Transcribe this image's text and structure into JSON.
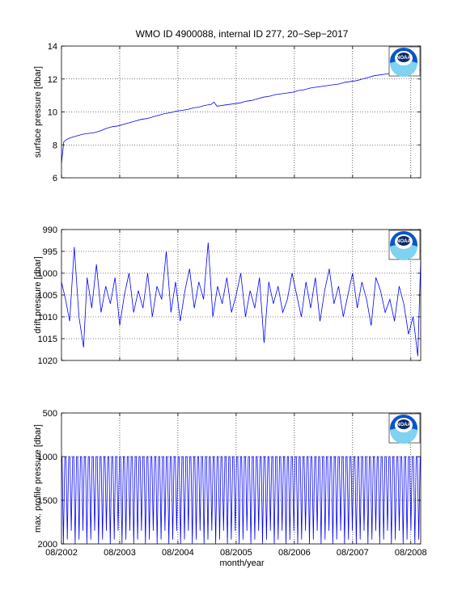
{
  "figure": {
    "title": "WMO ID 4900088, internal ID 277, 20−Sep−2017",
    "xlabel": "month/year",
    "logo_text": "NOAA"
  },
  "colors": {
    "line": "#0000ff",
    "grid": "#000000",
    "logo_blue": "#0a55c8",
    "logo_navy": "#0d2a6b"
  },
  "chart_data": [
    {
      "type": "line",
      "ylabel": "surface pressure [dbar]",
      "ylim": [
        6,
        14
      ],
      "yticks": [
        6,
        8,
        10,
        12,
        14
      ],
      "y_reversed": false,
      "grid": true,
      "series": [
        {
          "x": [
            2002.58,
            2002.62,
            2002.68,
            2002.75,
            2002.85,
            2002.95,
            2003.05,
            2003.15,
            2003.25,
            2003.35,
            2003.45,
            2003.55,
            2003.65,
            2003.75,
            2003.85,
            2003.95,
            2004.05,
            2004.15,
            2004.25,
            2004.35,
            2004.45,
            2004.55,
            2004.65,
            2004.75,
            2004.85,
            2004.95,
            2005.05,
            2005.15,
            2005.2,
            2005.25,
            2005.35,
            2005.45,
            2005.55,
            2005.65,
            2005.75,
            2005.85,
            2005.95,
            2006.05,
            2006.15,
            2006.25,
            2006.35,
            2006.45,
            2006.55,
            2006.65,
            2006.75,
            2006.85,
            2006.95,
            2007.05,
            2007.15,
            2007.25,
            2007.35,
            2007.45,
            2007.55,
            2007.65,
            2007.75,
            2007.85,
            2007.95,
            2008.05,
            2008.15,
            2008.25,
            2008.35,
            2008.45,
            2008.55,
            2008.65,
            2008.75
          ],
          "y": [
            6.9,
            8.2,
            8.35,
            8.45,
            8.55,
            8.65,
            8.7,
            8.75,
            8.85,
            9.0,
            9.1,
            9.15,
            9.25,
            9.35,
            9.45,
            9.55,
            9.6,
            9.7,
            9.8,
            9.9,
            9.95,
            10.05,
            10.1,
            10.15,
            10.25,
            10.3,
            10.4,
            10.45,
            10.6,
            10.35,
            10.4,
            10.45,
            10.5,
            10.55,
            10.65,
            10.7,
            10.8,
            10.9,
            10.95,
            11.05,
            11.1,
            11.15,
            11.2,
            11.3,
            11.35,
            11.45,
            11.5,
            11.55,
            11.6,
            11.65,
            11.7,
            11.8,
            11.85,
            11.9,
            12.0,
            12.1,
            12.2,
            12.25,
            12.3,
            12.35,
            12.4,
            12.45,
            12.45,
            12.5,
            12.55
          ]
        }
      ]
    },
    {
      "type": "line",
      "ylabel": "drift pressure [dbar]",
      "ylim": [
        990,
        1020
      ],
      "yticks": [
        990,
        995,
        1000,
        1005,
        1010,
        1015,
        1020
      ],
      "y_reversed": true,
      "grid": true,
      "series": [
        {
          "x": [
            2002.58,
            2002.65,
            2002.72,
            2002.8,
            2002.88,
            2002.96,
            2003.02,
            2003.1,
            2003.18,
            2003.26,
            2003.34,
            2003.42,
            2003.5,
            2003.58,
            2003.66,
            2003.74,
            2003.82,
            2003.9,
            2003.98,
            2004.06,
            2004.14,
            2004.22,
            2004.3,
            2004.38,
            2004.46,
            2004.54,
            2004.62,
            2004.7,
            2004.78,
            2004.86,
            2004.94,
            2005.02,
            2005.1,
            2005.18,
            2005.26,
            2005.34,
            2005.42,
            2005.5,
            2005.58,
            2005.66,
            2005.74,
            2005.82,
            2005.9,
            2005.98,
            2006.06,
            2006.14,
            2006.22,
            2006.3,
            2006.38,
            2006.46,
            2006.54,
            2006.62,
            2006.7,
            2006.78,
            2006.86,
            2006.94,
            2007.02,
            2007.1,
            2007.18,
            2007.26,
            2007.34,
            2007.42,
            2007.5,
            2007.58,
            2007.66,
            2007.74,
            2007.82,
            2007.9,
            2007.98,
            2008.06,
            2008.14,
            2008.22,
            2008.3,
            2008.38,
            2008.46,
            2008.54,
            2008.62,
            2008.7,
            2008.75
          ],
          "y": [
            1002,
            1006,
            1011,
            994,
            1010,
            1017,
            1001,
            1008,
            998,
            1009,
            1003,
            1007,
            1001,
            1012,
            1005,
            1000,
            1009,
            1004,
            1008,
            1000,
            1010,
            1003,
            1006,
            995,
            1009,
            1002,
            1011,
            1004,
            999,
            1008,
            1002,
            1006,
            993,
            1010,
            1003,
            1007,
            1001,
            1009,
            1005,
            1000,
            1010,
            1004,
            1008,
            1001,
            1016,
            1002,
            1007,
            1003,
            1009,
            1006,
            1000,
            1005,
            1010,
            1002,
            1008,
            1001,
            1011,
            1004,
            999,
            1007,
            1003,
            1010,
            1005,
            1000,
            1008,
            1002,
            1006,
            1012,
            1001,
            1004,
            1009,
            1006,
            1011,
            1003,
            1007,
            1014,
            1010,
            1019,
            997
          ]
        }
      ]
    },
    {
      "type": "line",
      "ylabel": "max. profile pressure [dbar]",
      "ylim": [
        500,
        2000
      ],
      "yticks": [
        500,
        1000,
        1500,
        2000
      ],
      "y_reversed": true,
      "grid": true,
      "profile_cycles": 92,
      "parking_level": 1000,
      "deep_level": 2000,
      "series": [
        {
          "x_start": 2002.58,
          "x_end": 2008.75
        }
      ]
    }
  ],
  "xaxis": {
    "xlim": [
      2002.58,
      2008.75
    ],
    "ticks": [
      2002.58,
      2003.58,
      2004.58,
      2005.58,
      2006.58,
      2007.58,
      2008.58
    ],
    "tick_labels": [
      "08/2002",
      "08/2003",
      "08/2004",
      "08/2005",
      "08/2006",
      "08/2007",
      "08/2008"
    ]
  }
}
